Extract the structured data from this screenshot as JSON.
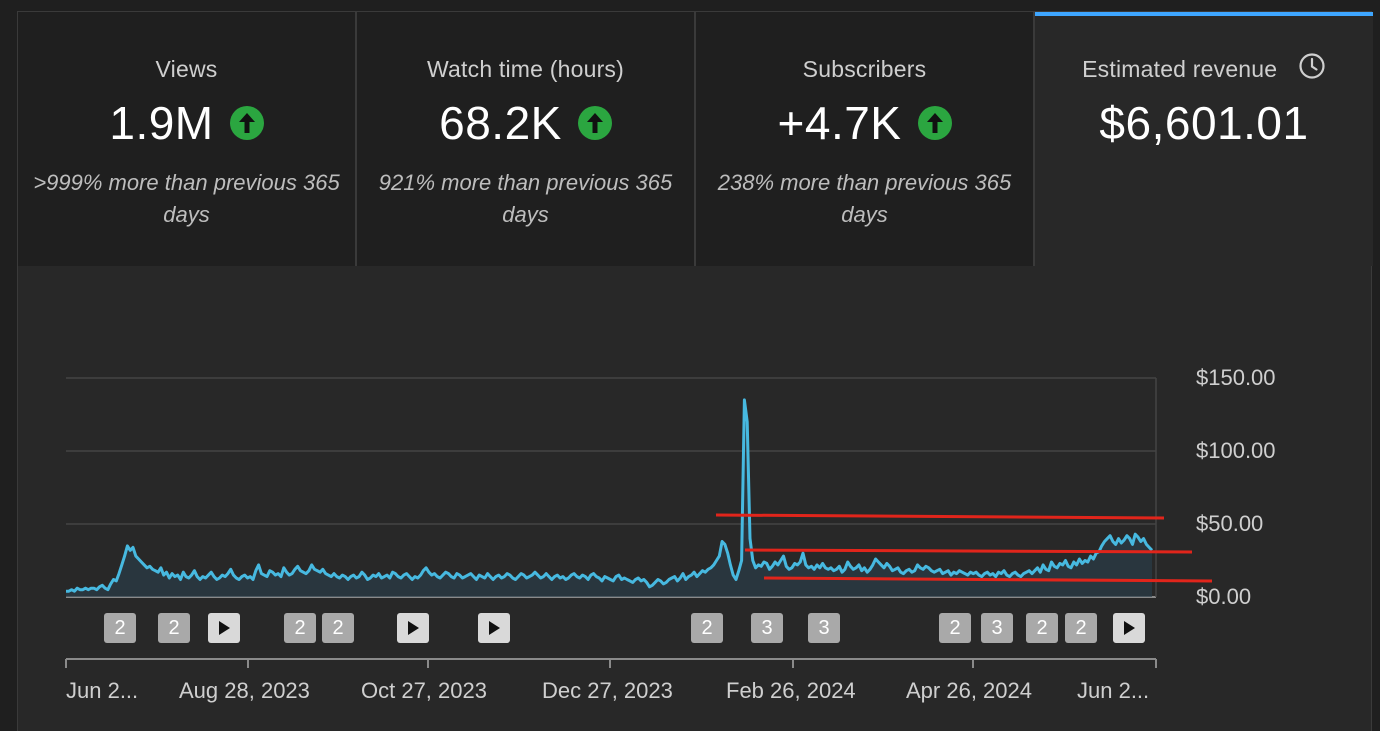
{
  "tabs": [
    {
      "title": "Views",
      "value": "1.9M",
      "trend_icon": "arrow-up-icon",
      "comparison_line1": ">999% more than previous 365",
      "comparison_line2": "days"
    },
    {
      "title": "Watch time (hours)",
      "value": "68.2K",
      "trend_icon": "arrow-up-icon",
      "comparison_line1": "921% more than previous 365",
      "comparison_line2": "days"
    },
    {
      "title": "Subscribers",
      "value": "+4.7K",
      "trend_icon": "arrow-up-icon",
      "comparison_line1": "238% more than previous 365",
      "comparison_line2": "days"
    },
    {
      "title": "Estimated revenue",
      "value": "$6,601.01",
      "info_icon": "clock-icon",
      "selected": true
    }
  ],
  "colors": {
    "accent": "#3ea6ff",
    "trend_up": "#2ba640",
    "line": "#3ea6ff",
    "annotation": "#e1251b"
  },
  "chart_data": {
    "type": "area",
    "y_axis": {
      "ticks": [
        "$150.00",
        "$100.00",
        "$50.00",
        "$0.00"
      ],
      "range": [
        0,
        150
      ],
      "position": "right"
    },
    "x_axis": {
      "ticks": [
        "Jun 2...",
        "Aug 28, 2023",
        "Oct 27, 2023",
        "Dec 27, 2023",
        "Feb 26, 2024",
        "Apr 26, 2024",
        "Jun 2..."
      ]
    },
    "grid": true,
    "series": [
      {
        "values": [
          4,
          4,
          5,
          4,
          6,
          5,
          5,
          6,
          5,
          6,
          6,
          5,
          7,
          8,
          6,
          5,
          9,
          12,
          11,
          16,
          22,
          28,
          35,
          32,
          34,
          28,
          26,
          24,
          22,
          20,
          21,
          19,
          18,
          17,
          20,
          15,
          17,
          13,
          16,
          14,
          15,
          12,
          17,
          14,
          13,
          15,
          18,
          14,
          12,
          14,
          13,
          15,
          17,
          14,
          12,
          13,
          15,
          14,
          16,
          19,
          15,
          13,
          12,
          14,
          15,
          13,
          14,
          12,
          18,
          22,
          16,
          15,
          14,
          18,
          17,
          15,
          16,
          14,
          20,
          17,
          15,
          16,
          19,
          21,
          18,
          17,
          16,
          18,
          22,
          19,
          18,
          17,
          19,
          16,
          15,
          14,
          16,
          14,
          13,
          15,
          14,
          12,
          14,
          15,
          13,
          14,
          17,
          15,
          12,
          13,
          15,
          14,
          16,
          13,
          14,
          15,
          13,
          17,
          16,
          14,
          13,
          15,
          16,
          14,
          12,
          14,
          13,
          15,
          18,
          20,
          17,
          15,
          16,
          14,
          13,
          15,
          17,
          16,
          14,
          13,
          16,
          15,
          13,
          14,
          15,
          16,
          14,
          12,
          15,
          14,
          13,
          16,
          14,
          12,
          14,
          15,
          13,
          14,
          16,
          15,
          13,
          12,
          14,
          16,
          15,
          13,
          14,
          15,
          17,
          15,
          13,
          14,
          16,
          14,
          12,
          14,
          15,
          13,
          14,
          12,
          13,
          15,
          16,
          14,
          13,
          15,
          14,
          12,
          15,
          16,
          14,
          13,
          11,
          14,
          13,
          12,
          11,
          14,
          15,
          12,
          13,
          12,
          11,
          10,
          12,
          13,
          11,
          12,
          10,
          7,
          8,
          10,
          12,
          11,
          9,
          10,
          12,
          13,
          14,
          11,
          13,
          16,
          12,
          14,
          15,
          17,
          14,
          16,
          18,
          17,
          19,
          20,
          22,
          25,
          28,
          38,
          36,
          30,
          22,
          15,
          12,
          18,
          25,
          135,
          120,
          40,
          25,
          20,
          22,
          21,
          24,
          23,
          19,
          21,
          24,
          22,
          25,
          28,
          21,
          19,
          20,
          23,
          22,
          24,
          30,
          22,
          20,
          21,
          19,
          22,
          20,
          23,
          20,
          19,
          20,
          18,
          19,
          21,
          17,
          19,
          24,
          21,
          19,
          20,
          22,
          18,
          20,
          17,
          19,
          22,
          26,
          24,
          22,
          20,
          23,
          21,
          18,
          19,
          20,
          17,
          16,
          18,
          19,
          17,
          18,
          22,
          20,
          19,
          21,
          20,
          18,
          17,
          18,
          19,
          16,
          17,
          18,
          15,
          17,
          16,
          18,
          17,
          16,
          15,
          17,
          16,
          17,
          15,
          14,
          16,
          17,
          15,
          16,
          14,
          17,
          16,
          18,
          15,
          14,
          16,
          17,
          15,
          14,
          16,
          17,
          18,
          16,
          18,
          20,
          17,
          22,
          19,
          18,
          24,
          21,
          20,
          23,
          22,
          25,
          21,
          20,
          24,
          22,
          26,
          23,
          25,
          24,
          28,
          26,
          30,
          31,
          35,
          38,
          40,
          42,
          38,
          36,
          40,
          37,
          39,
          42,
          40,
          36,
          43,
          41,
          38,
          40,
          36,
          34,
          32
        ]
      }
    ],
    "annotation_lines": "three red horizontal lines drawn over the chart",
    "markers": [
      "2",
      "2",
      "play",
      "2",
      "2",
      "play",
      "play",
      "2",
      "3",
      "3",
      "2",
      "3",
      "2",
      "2",
      "play"
    ]
  }
}
